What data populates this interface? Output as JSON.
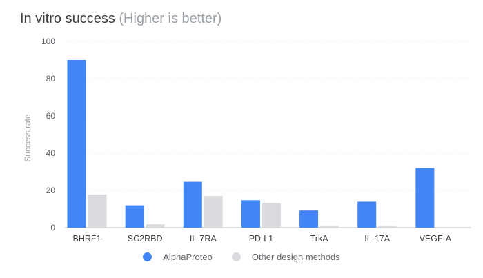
{
  "title": {
    "main": "In vitro success",
    "sub": "(Higher is better)"
  },
  "chart_data": {
    "type": "bar",
    "ylabel": "Success rate",
    "xlabel": "",
    "ylim": [
      0,
      100
    ],
    "yticks": [
      0,
      20,
      40,
      60,
      80,
      100
    ],
    "grid": true,
    "legend_position": "bottom",
    "categories": [
      "BHRF1",
      "SC2RBD",
      "IL-7RA",
      "PD-L1",
      "TrkA",
      "IL-17A",
      "VEGF-A"
    ],
    "series": [
      {
        "name": "AlphaProteo",
        "color": "#4285f4",
        "values": [
          90,
          12,
          24.6,
          14.7,
          9.2,
          13.9,
          32
        ]
      },
      {
        "name": "Other design methods",
        "color": "#dadce0",
        "values": [
          17.8,
          1.8,
          17,
          13.2,
          1,
          1,
          0
        ]
      }
    ]
  }
}
